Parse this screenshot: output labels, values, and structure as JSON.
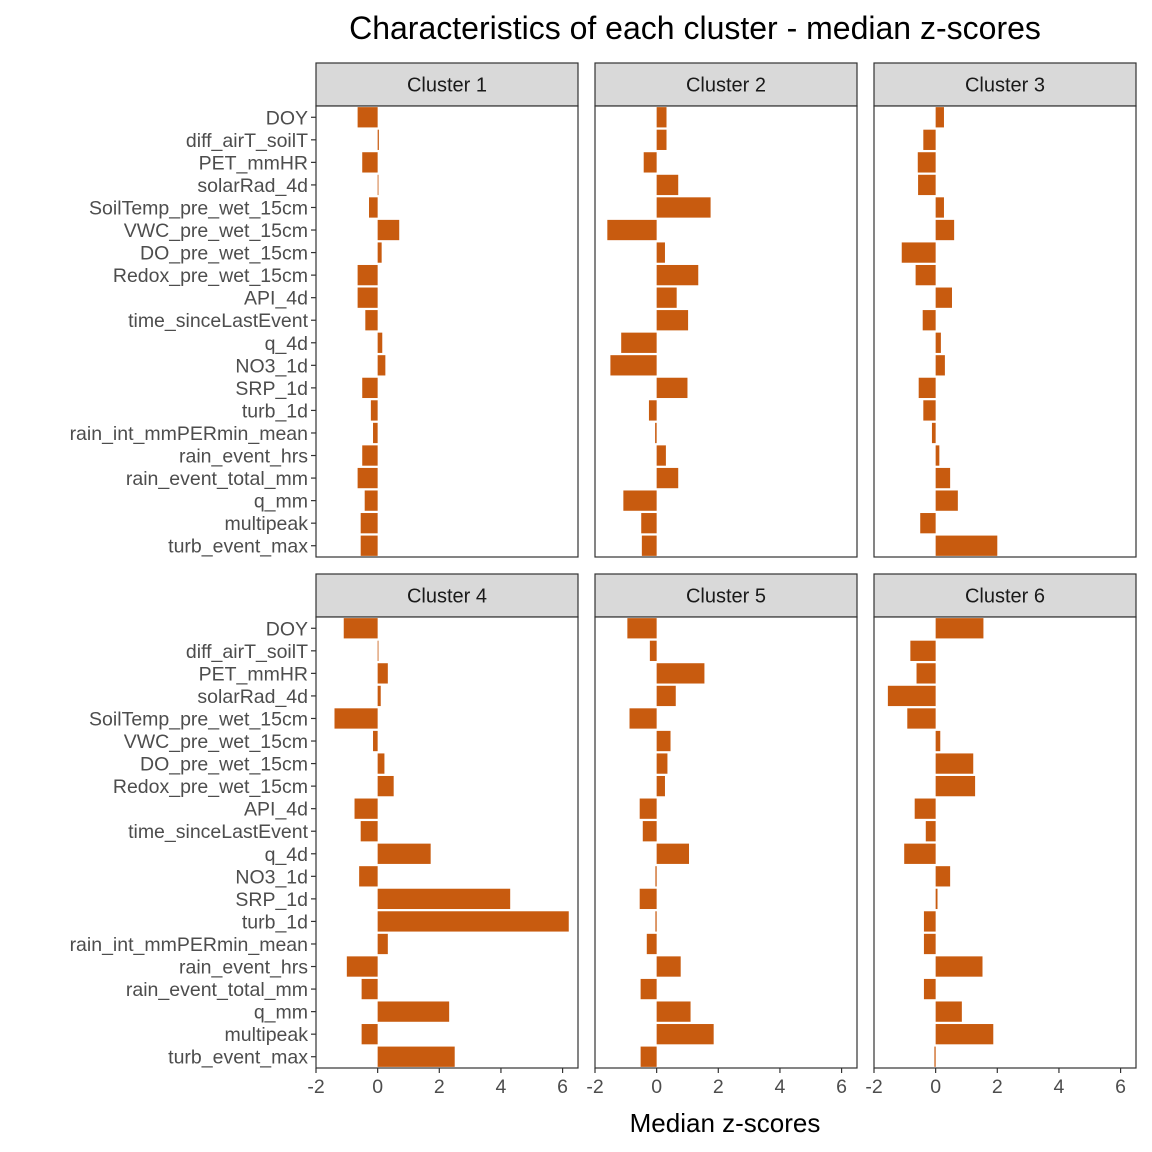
{
  "chart_data": {
    "type": "bar",
    "orientation": "horizontal",
    "title": "Characteristics of each cluster - median z-scores",
    "xlabel": "Median z-scores",
    "ylabel": "",
    "xlim": [
      -2,
      6.5
    ],
    "xticks": [
      -2,
      0,
      2,
      4,
      6
    ],
    "xtick_labels": [
      "-2",
      "0",
      "2",
      "4",
      "6"
    ],
    "bar_color": "#C85B0F",
    "grid": false,
    "categories": [
      "DOY",
      "diff_airT_soilT",
      "PET_mmHR",
      "solarRad_4d",
      "SoilTemp_pre_wet_15cm",
      "VWC_pre_wet_15cm",
      "DO_pre_wet_15cm",
      "Redox_pre_wet_15cm",
      "API_4d",
      "time_sinceLastEvent",
      "q_4d",
      "NO3_1d",
      "SRP_1d",
      "turb_1d",
      "rain_int_mmPERmin_mean",
      "rain_event_hrs",
      "rain_event_total_mm",
      "q_mm",
      "multipeak",
      "turb_event_max"
    ],
    "panels": [
      {
        "name": "Cluster 1",
        "values": [
          -0.65,
          0.04,
          -0.5,
          0.02,
          -0.28,
          0.7,
          0.13,
          -0.65,
          -0.65,
          -0.4,
          0.15,
          0.25,
          -0.5,
          -0.22,
          -0.15,
          -0.5,
          -0.65,
          -0.42,
          -0.55,
          -0.55
        ]
      },
      {
        "name": "Cluster 2",
        "values": [
          0.32,
          0.32,
          -0.42,
          0.7,
          1.75,
          -1.6,
          0.27,
          1.35,
          0.65,
          1.02,
          -1.15,
          -1.5,
          1.0,
          -0.25,
          -0.05,
          0.3,
          0.7,
          -1.08,
          -0.5,
          -0.48
        ]
      },
      {
        "name": "Cluster 3",
        "values": [
          0.27,
          -0.4,
          -0.58,
          -0.57,
          0.27,
          0.6,
          -1.1,
          -0.65,
          0.53,
          -0.42,
          0.17,
          0.3,
          -0.55,
          -0.4,
          -0.12,
          0.12,
          0.47,
          0.72,
          -0.5,
          2.0
        ]
      },
      {
        "name": "Cluster 4",
        "values": [
          -1.1,
          0.02,
          0.33,
          0.1,
          -1.4,
          -0.15,
          0.22,
          0.52,
          -0.75,
          -0.55,
          1.72,
          -0.6,
          4.3,
          6.2,
          0.33,
          -1.0,
          -0.52,
          2.32,
          -0.52,
          2.5
        ]
      },
      {
        "name": "Cluster 5",
        "values": [
          -0.95,
          -0.22,
          1.55,
          0.62,
          -0.88,
          0.45,
          0.35,
          0.27,
          -0.55,
          -0.45,
          1.05,
          -0.04,
          -0.55,
          -0.04,
          -0.32,
          0.78,
          -0.52,
          1.1,
          1.85,
          -0.52
        ]
      },
      {
        "name": "Cluster 6",
        "values": [
          1.55,
          -0.82,
          -0.62,
          -1.55,
          -0.92,
          0.15,
          1.22,
          1.28,
          -0.68,
          -0.32,
          -1.02,
          0.47,
          0.06,
          -0.38,
          -0.38,
          1.52,
          -0.38,
          0.85,
          1.87,
          -0.04
        ]
      }
    ]
  }
}
